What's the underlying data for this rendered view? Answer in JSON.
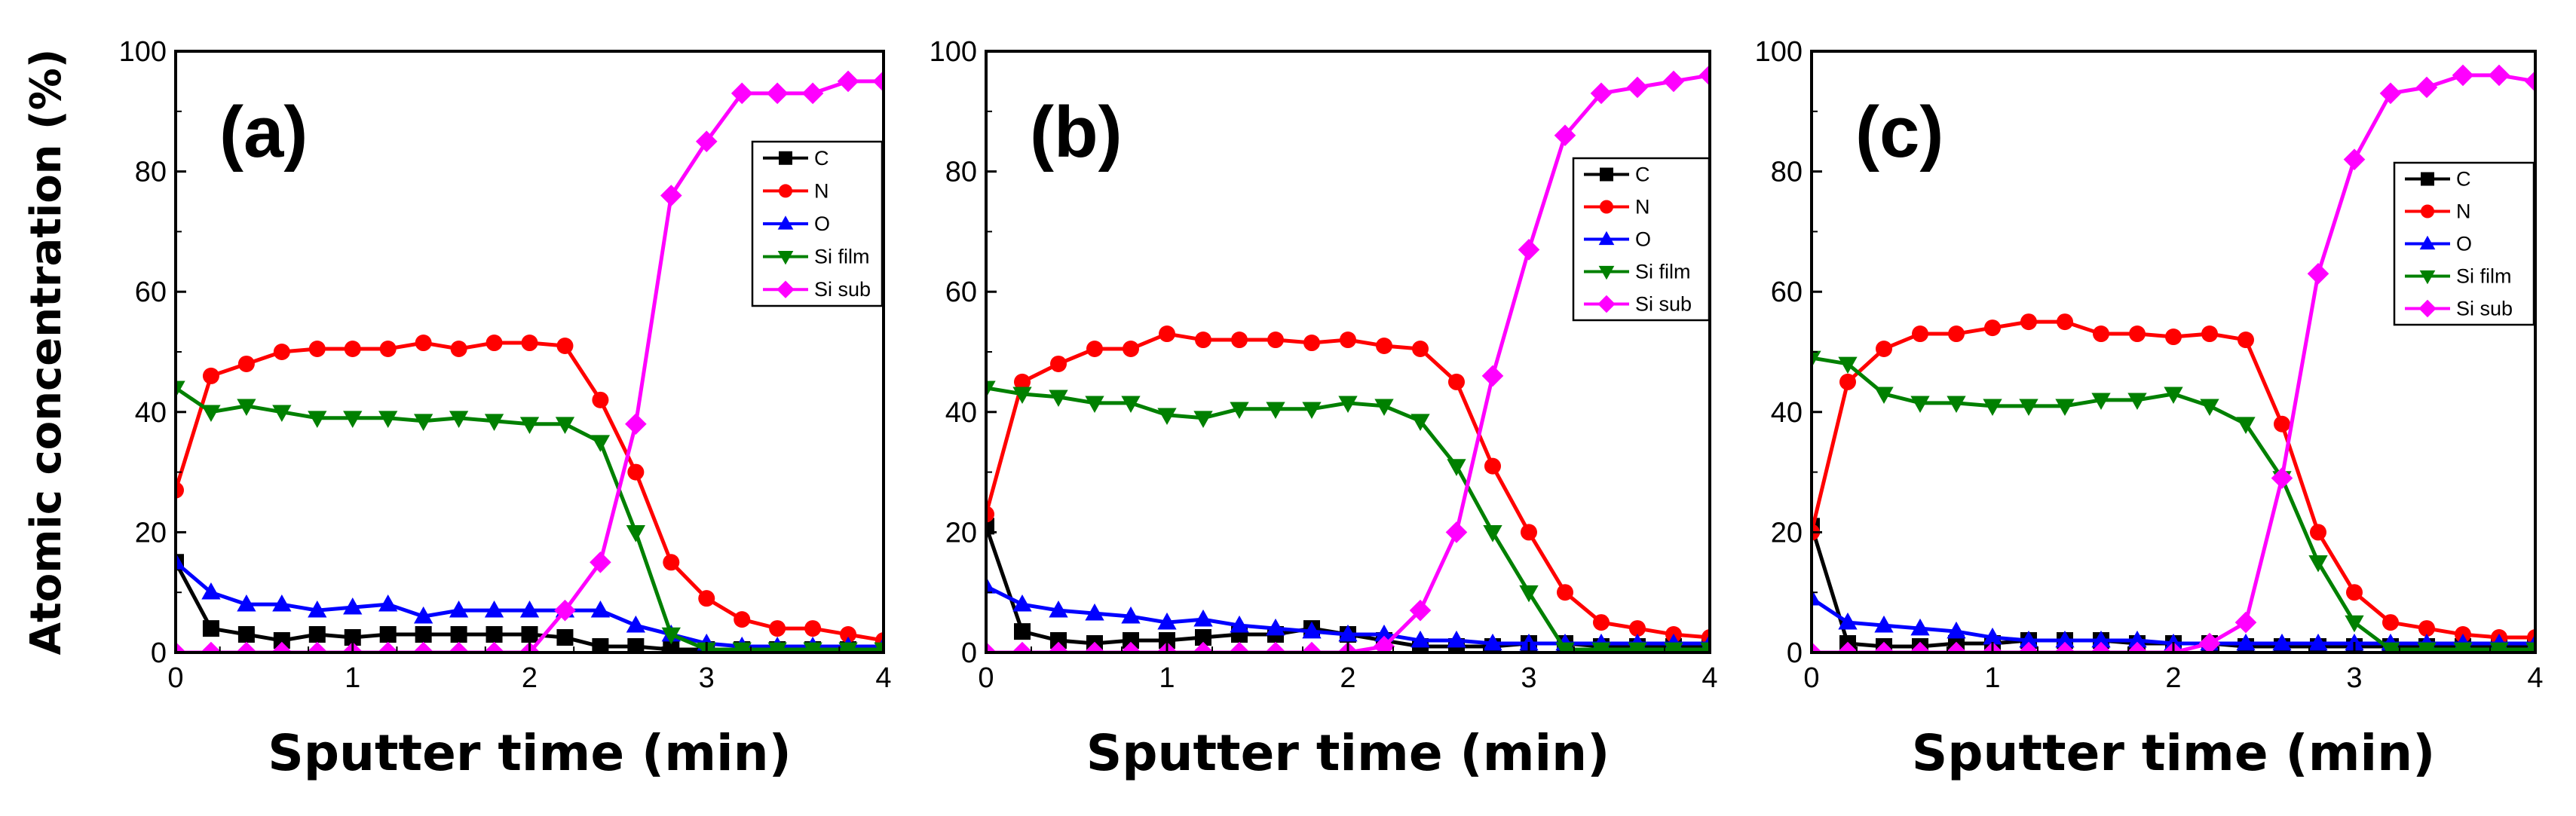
{
  "chart_data": [
    {
      "type": "line",
      "panel_label": "(a)",
      "xlabel": "Sputter time (min)",
      "ylabel": "Atomic concentration (%)",
      "xlim": [
        0,
        4
      ],
      "ylim": [
        0,
        100
      ],
      "xticks": [
        "0",
        "1",
        "2",
        "3",
        "4"
      ],
      "yticks": [
        "0",
        "20",
        "40",
        "60",
        "80",
        "100"
      ],
      "legend_position": "right",
      "x": [
        0,
        0.2,
        0.4,
        0.6,
        0.8,
        1.0,
        1.2,
        1.4,
        1.6,
        1.8,
        2.0,
        2.2,
        2.4,
        2.6,
        2.8,
        3.0,
        3.2,
        3.4,
        3.6,
        3.8,
        4.0
      ],
      "series": [
        {
          "name": "C",
          "color": "#000000",
          "marker": "square",
          "values": [
            15,
            4,
            3,
            2,
            3,
            2.5,
            3,
            3,
            3,
            3,
            3,
            2.5,
            1,
            1,
            0.5,
            0.5,
            0.5,
            0.5,
            0.5,
            0.5,
            0.5
          ]
        },
        {
          "name": "N",
          "color": "#ff0000",
          "marker": "circle",
          "values": [
            27,
            46,
            48,
            50,
            50.5,
            50.5,
            50.5,
            51.5,
            50.5,
            51.5,
            51.5,
            51,
            42,
            30,
            15,
            9,
            5.5,
            4,
            4,
            3,
            2
          ]
        },
        {
          "name": "O",
          "color": "#0000ff",
          "marker": "triangle-up",
          "values": [
            15,
            10,
            8,
            8,
            7,
            7.5,
            8,
            6,
            7,
            7,
            7,
            7,
            7,
            4.5,
            3,
            1.5,
            1,
            1,
            1,
            1,
            1
          ]
        },
        {
          "name": "Si film",
          "color": "#008000",
          "marker": "triangle-down",
          "values": [
            44,
            40,
            41,
            40,
            39,
            39,
            39,
            38.5,
            39,
            38.5,
            38,
            38,
            35,
            20,
            3,
            0.5,
            0.5,
            0.5,
            0.5,
            0.5,
            0.5
          ]
        },
        {
          "name": "Si sub",
          "color": "#ff00ff",
          "marker": "diamond",
          "values": [
            0,
            0,
            0,
            0,
            0,
            0,
            0,
            0,
            0,
            0,
            0,
            7,
            15,
            38,
            76,
            85,
            93,
            93,
            93,
            95,
            95
          ]
        }
      ]
    },
    {
      "type": "line",
      "panel_label": "(b)",
      "xlabel": "Sputter time (min)",
      "ylabel": "",
      "xlim": [
        0,
        4
      ],
      "ylim": [
        0,
        100
      ],
      "xticks": [
        "0",
        "1",
        "2",
        "3",
        "4"
      ],
      "yticks": [
        "0",
        "20",
        "40",
        "60",
        "80",
        "100"
      ],
      "legend_position": "right",
      "x": [
        0,
        0.2,
        0.4,
        0.6,
        0.8,
        1.0,
        1.2,
        1.4,
        1.6,
        1.8,
        2.0,
        2.2,
        2.4,
        2.6,
        2.8,
        3.0,
        3.2,
        3.4,
        3.6,
        3.8,
        4.0
      ],
      "series": [
        {
          "name": "C",
          "color": "#000000",
          "marker": "square",
          "values": [
            21,
            3.5,
            2,
            1.5,
            2,
            2,
            2.5,
            3,
            3,
            4,
            3,
            2,
            1,
            1,
            1,
            1.5,
            1.5,
            1,
            1,
            1,
            1
          ]
        },
        {
          "name": "N",
          "color": "#ff0000",
          "marker": "circle",
          "values": [
            23,
            45,
            48,
            50.5,
            50.5,
            53,
            52,
            52,
            52,
            51.5,
            52,
            51,
            50.5,
            45,
            31,
            20,
            10,
            5,
            4,
            3,
            2.5
          ]
        },
        {
          "name": "O",
          "color": "#0000ff",
          "marker": "triangle-up",
          "values": [
            11,
            8,
            7,
            6.5,
            6,
            5,
            5.5,
            4.5,
            4,
            3.5,
            3,
            3,
            2,
            2,
            1.5,
            1.5,
            1.5,
            1.5,
            1.5,
            1.5,
            1.5
          ]
        },
        {
          "name": "Si film",
          "color": "#008000",
          "marker": "triangle-down",
          "values": [
            44,
            43,
            42.5,
            41.5,
            41.5,
            39.5,
            39,
            40.5,
            40.5,
            40.5,
            41.5,
            41,
            38.5,
            31,
            20,
            10,
            0.5,
            0.5,
            0.5,
            0.5,
            0.5
          ]
        },
        {
          "name": "Si sub",
          "color": "#ff00ff",
          "marker": "diamond",
          "values": [
            0,
            0,
            0,
            0,
            0,
            0,
            0,
            0,
            0,
            0,
            0,
            1,
            7,
            20,
            46,
            67,
            86,
            93,
            94,
            95,
            96
          ]
        }
      ]
    },
    {
      "type": "line",
      "panel_label": "(c)",
      "xlabel": "Sputter time (min)",
      "ylabel": "",
      "xlim": [
        0,
        4
      ],
      "ylim": [
        0,
        100
      ],
      "xticks": [
        "0",
        "1",
        "2",
        "3",
        "4"
      ],
      "yticks": [
        "0",
        "20",
        "40",
        "60",
        "80",
        "100"
      ],
      "legend_position": "right",
      "x": [
        0,
        0.2,
        0.4,
        0.6,
        0.8,
        1.0,
        1.2,
        1.4,
        1.6,
        1.8,
        2.0,
        2.2,
        2.4,
        2.6,
        2.8,
        3.0,
        3.2,
        3.4,
        3.6,
        3.8,
        4.0
      ],
      "series": [
        {
          "name": "C",
          "color": "#000000",
          "marker": "square",
          "values": [
            21,
            1.5,
            1,
            1,
            1.5,
            1.5,
            2,
            2,
            2,
            1.5,
            1.5,
            1.5,
            1,
            1,
            1,
            1,
            1,
            1,
            1,
            1,
            1
          ]
        },
        {
          "name": "N",
          "color": "#ff0000",
          "marker": "circle",
          "values": [
            20,
            45,
            50.5,
            53,
            53,
            54,
            55,
            55,
            53,
            53,
            52.5,
            53,
            52,
            38,
            20,
            10,
            5,
            4,
            3,
            2.5,
            2.5
          ]
        },
        {
          "name": "O",
          "color": "#0000ff",
          "marker": "triangle-up",
          "values": [
            9,
            5,
            4.5,
            4,
            3.5,
            2.5,
            2,
            2,
            2,
            2,
            1.5,
            1.5,
            1.5,
            1.5,
            1.5,
            1.5,
            1.5,
            1.5,
            1.5,
            1.5,
            1.5
          ]
        },
        {
          "name": "Si film",
          "color": "#008000",
          "marker": "triangle-down",
          "values": [
            49,
            48,
            43,
            41.5,
            41.5,
            41,
            41,
            41,
            42,
            42,
            43,
            41,
            38,
            29,
            15,
            5,
            0.5,
            0.5,
            0.5,
            0.5,
            0.5
          ]
        },
        {
          "name": "Si sub",
          "color": "#ff00ff",
          "marker": "diamond",
          "values": [
            0,
            0,
            0,
            0,
            0,
            0,
            0,
            0,
            0,
            0,
            0,
            1.5,
            5,
            29,
            63,
            82,
            93,
            94,
            96,
            96,
            95
          ]
        }
      ]
    }
  ]
}
